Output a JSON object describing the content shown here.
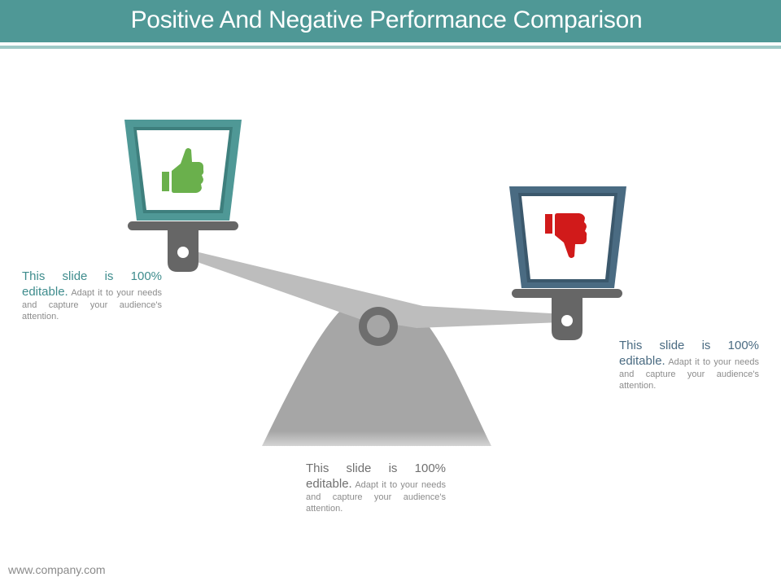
{
  "slide": {
    "title": "Positive And Negative Performance Comparison",
    "footer": "www.company.com"
  },
  "colors": {
    "title_bar": "#4f9896",
    "positive_pan": "#4f9896",
    "negative_pan": "#4a6b82",
    "thumbs_up": "#6ab04c",
    "thumbs_down": "#d11a1a",
    "scale_gray": "#9e9e9e"
  },
  "icons": {
    "positive": "thumbs-up-icon",
    "negative": "thumbs-down-icon"
  },
  "text_blocks": {
    "left": {
      "lead": "This slide is 100% editable.",
      "body": "Adapt it to your needs and capture your audience's attention."
    },
    "right": {
      "lead": "This slide is 100% editable.",
      "body": "Adapt it to your needs and capture your audience's attention."
    },
    "bottom": {
      "lead": "This slide is 100% editable.",
      "body": "Adapt it to your needs and capture your audience's attention."
    }
  }
}
